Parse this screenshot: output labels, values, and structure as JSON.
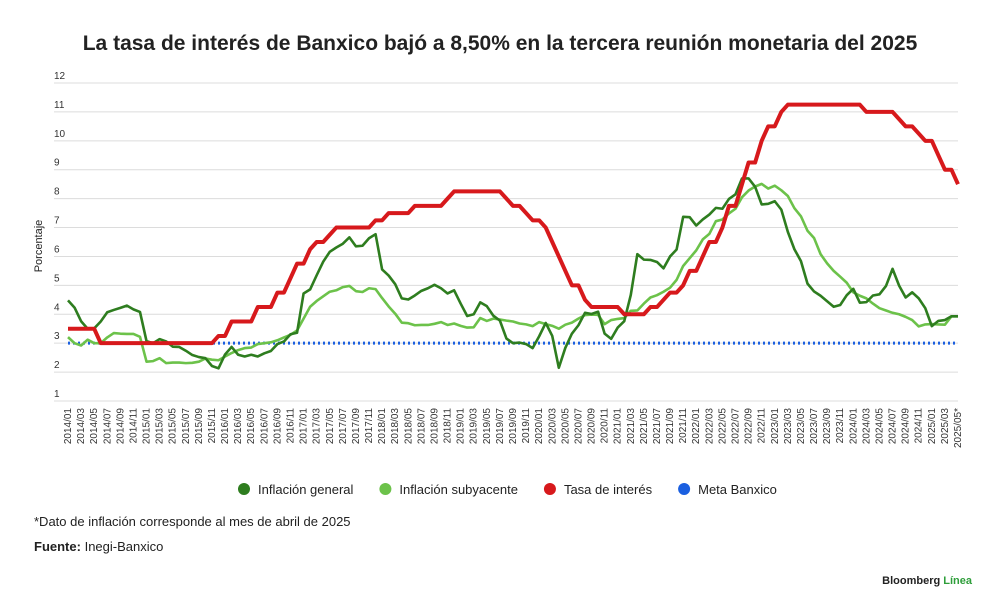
{
  "chart_data": {
    "type": "line",
    "title": "La tasa de interés de Banxico bajó a 8,50% en la tercera reunión monetaria del 2025",
    "y_label": "Porcentaje",
    "categories": [
      "2014/01",
      null,
      "2014/03",
      null,
      "2014/05",
      null,
      "2014/07",
      null,
      "2014/09",
      null,
      "2014/11",
      null,
      "2015/01",
      null,
      "2015/03",
      null,
      "2015/05",
      null,
      "2015/07",
      null,
      "2015/09",
      null,
      "2015/11",
      null,
      "2016/01",
      null,
      "2016/03",
      null,
      "2016/05",
      null,
      "2016/07",
      null,
      "2016/09",
      null,
      "2016/11",
      null,
      "2017/01",
      null,
      "2017/03",
      null,
      "2017/05",
      null,
      "2017/07",
      null,
      "2017/09",
      null,
      "2017/11",
      null,
      "2018/01",
      null,
      "2018/03",
      null,
      "2018/05",
      null,
      "2018/07",
      null,
      "2018/09",
      null,
      "2018/11",
      null,
      "2019/01",
      null,
      "2019/03",
      null,
      "2019/05",
      null,
      "2019/07",
      null,
      "2019/09",
      null,
      "2019/11",
      null,
      "2020/01",
      null,
      "2020/03",
      null,
      "2020/05",
      null,
      "2020/07",
      null,
      "2020/09",
      null,
      "2020/11",
      null,
      "2021/01",
      null,
      "2021/03",
      null,
      "2021/05",
      null,
      "2021/07",
      null,
      "2021/09",
      null,
      "2021/11",
      null,
      "2022/01",
      null,
      "2022/03",
      null,
      "2022/05",
      null,
      "2022/07",
      null,
      "2022/09",
      null,
      "2022/11",
      null,
      "2023/01",
      null,
      "2023/03",
      null,
      "2023/05",
      null,
      "2023/07",
      null,
      "2023/09",
      null,
      "2023/11",
      null,
      "2024/01",
      null,
      "2024/03",
      null,
      "2024/05",
      null,
      "2024/07",
      null,
      "2024/09",
      null,
      "2024/11",
      null,
      "2025/01",
      null,
      "2025/03",
      null,
      "2025/05*"
    ],
    "series": [
      {
        "name": "Inflación general",
        "color": "#2e7d1f",
        "line_style": "solid",
        "values": [
          4.48,
          4.23,
          3.76,
          3.5,
          3.51,
          3.75,
          4.07,
          4.15,
          4.22,
          4.3,
          4.17,
          4.08,
          3.07,
          3.0,
          3.14,
          3.06,
          2.88,
          2.87,
          2.74,
          2.59,
          2.52,
          2.48,
          2.21,
          2.13,
          2.61,
          2.87,
          2.6,
          2.54,
          2.6,
          2.54,
          2.65,
          2.73,
          2.97,
          3.06,
          3.31,
          3.36,
          4.72,
          4.86,
          5.35,
          5.82,
          6.16,
          6.31,
          6.44,
          6.66,
          6.35,
          6.37,
          6.63,
          6.77,
          5.55,
          5.34,
          5.04,
          4.55,
          4.51,
          4.65,
          4.81,
          4.9,
          5.02,
          4.9,
          4.72,
          4.83,
          4.37,
          3.94,
          4.0,
          4.41,
          4.28,
          3.95,
          3.78,
          3.16,
          3.0,
          3.02,
          2.97,
          2.83,
          3.24,
          3.7,
          3.25,
          2.15,
          2.84,
          3.33,
          3.62,
          4.05,
          4.01,
          4.09,
          3.33,
          3.15,
          3.54,
          3.76,
          4.67,
          6.08,
          5.89,
          5.88,
          5.81,
          5.59,
          6.0,
          6.24,
          7.37,
          7.36,
          7.07,
          7.28,
          7.45,
          7.68,
          7.65,
          7.99,
          8.15,
          8.7,
          8.7,
          8.41,
          7.8,
          7.82,
          7.91,
          7.62,
          6.85,
          6.25,
          5.84,
          5.06,
          4.79,
          4.64,
          4.45,
          4.26,
          4.32,
          4.66,
          4.88,
          4.4,
          4.42,
          4.65,
          4.69,
          4.98,
          5.57,
          4.99,
          4.58,
          4.76,
          4.55,
          4.21,
          3.59,
          3.77,
          3.8,
          3.93,
          3.93
        ]
      },
      {
        "name": "Inflación subyacente",
        "color": "#6cc24a",
        "line_style": "solid",
        "values": [
          3.21,
          3.0,
          2.92,
          3.12,
          3.0,
          3.0,
          3.2,
          3.35,
          3.33,
          3.32,
          3.32,
          3.22,
          2.36,
          2.38,
          2.48,
          2.31,
          2.33,
          2.33,
          2.31,
          2.32,
          2.36,
          2.47,
          2.43,
          2.41,
          2.54,
          2.66,
          2.76,
          2.83,
          2.85,
          2.97,
          3.0,
          3.03,
          3.1,
          3.2,
          3.29,
          3.44,
          3.85,
          4.26,
          4.46,
          4.62,
          4.78,
          4.83,
          4.94,
          4.98,
          4.8,
          4.77,
          4.9,
          4.87,
          4.56,
          4.27,
          4.02,
          3.71,
          3.69,
          3.62,
          3.63,
          3.63,
          3.67,
          3.73,
          3.63,
          3.68,
          3.6,
          3.54,
          3.55,
          3.87,
          3.77,
          3.85,
          3.82,
          3.78,
          3.75,
          3.68,
          3.65,
          3.59,
          3.73,
          3.66,
          3.6,
          3.5,
          3.64,
          3.71,
          3.85,
          3.97,
          3.99,
          3.98,
          3.66,
          3.8,
          3.84,
          3.87,
          4.12,
          4.13,
          4.37,
          4.58,
          4.66,
          4.78,
          4.92,
          5.19,
          5.67,
          5.94,
          6.21,
          6.59,
          6.78,
          7.22,
          7.28,
          7.49,
          7.65,
          8.05,
          8.28,
          8.42,
          8.51,
          8.35,
          8.45,
          8.29,
          8.09,
          7.67,
          7.39,
          6.89,
          6.64,
          6.08,
          5.76,
          5.5,
          5.3,
          5.09,
          4.76,
          4.64,
          4.55,
          4.37,
          4.21,
          4.13,
          4.05,
          4.0,
          3.91,
          3.8,
          3.58,
          3.65,
          3.66,
          3.65,
          3.64,
          3.93,
          3.93
        ]
      },
      {
        "name": "Tasa de interés",
        "color": "#d7191c",
        "line_style": "solid",
        "values": [
          3.5,
          3.5,
          3.5,
          3.5,
          3.5,
          3,
          3,
          3,
          3,
          3,
          3,
          3,
          3,
          3,
          3,
          3,
          3,
          3,
          3,
          3,
          3,
          3,
          3,
          3.25,
          3.25,
          3.75,
          3.75,
          3.75,
          3.75,
          4.25,
          4.25,
          4.25,
          4.75,
          4.75,
          5.25,
          5.75,
          5.75,
          6.25,
          6.5,
          6.5,
          6.75,
          7,
          7,
          7,
          7,
          7,
          7,
          7.25,
          7.25,
          7.5,
          7.5,
          7.5,
          7.5,
          7.75,
          7.75,
          7.75,
          7.75,
          7.75,
          8,
          8.25,
          8.25,
          8.25,
          8.25,
          8.25,
          8.25,
          8.25,
          8.25,
          8,
          7.75,
          7.75,
          7.5,
          7.25,
          7.25,
          7,
          6.5,
          6,
          5.5,
          5,
          5,
          4.5,
          4.25,
          4.25,
          4.25,
          4.25,
          4.25,
          4,
          4,
          4,
          4,
          4.25,
          4.25,
          4.5,
          4.75,
          4.75,
          5,
          5.5,
          5.5,
          6,
          6.5,
          6.5,
          7,
          7.75,
          7.75,
          8.5,
          9.25,
          9.25,
          10,
          10.5,
          10.5,
          11,
          11.25,
          11.25,
          11.25,
          11.25,
          11.25,
          11.25,
          11.25,
          11.25,
          11.25,
          11.25,
          11.25,
          11.25,
          11,
          11,
          11,
          11,
          11,
          10.75,
          10.5,
          10.5,
          10.25,
          10,
          10,
          9.5,
          9,
          9,
          8.5
        ]
      },
      {
        "name": "Meta Banxico",
        "color": "#1a5fe0",
        "line_style": "dotted",
        "values": [
          3,
          3,
          3,
          3,
          3,
          3,
          3,
          3,
          3,
          3,
          3,
          3,
          3,
          3,
          3,
          3,
          3,
          3,
          3,
          3,
          3,
          3,
          3,
          3,
          3,
          3,
          3,
          3,
          3,
          3,
          3,
          3,
          3,
          3,
          3,
          3,
          3,
          3,
          3,
          3,
          3,
          3,
          3,
          3,
          3,
          3,
          3,
          3,
          3,
          3,
          3,
          3,
          3,
          3,
          3,
          3,
          3,
          3,
          3,
          3,
          3,
          3,
          3,
          3,
          3,
          3,
          3,
          3,
          3,
          3,
          3,
          3,
          3,
          3,
          3,
          3,
          3,
          3,
          3,
          3,
          3,
          3,
          3,
          3,
          3,
          3,
          3,
          3,
          3,
          3,
          3,
          3,
          3,
          3,
          3,
          3,
          3,
          3,
          3,
          3,
          3,
          3,
          3,
          3,
          3,
          3,
          3,
          3,
          3,
          3,
          3,
          3,
          3,
          3,
          3,
          3,
          3,
          3,
          3,
          3,
          3,
          3,
          3,
          3,
          3,
          3,
          3,
          3,
          3,
          3,
          3,
          3,
          3,
          3,
          3,
          3,
          3
        ]
      }
    ],
    "ylim": [
      1,
      12
    ],
    "yticks": [
      1,
      2,
      3,
      4,
      5,
      6,
      7,
      8,
      9,
      10,
      11,
      12
    ],
    "grid": true,
    "footnote": "*Dato de inflación corresponde al mes de abril de 2025",
    "source_label": "Fuente:",
    "source": "Inegi-Banxico",
    "brand": "Bloomberg",
    "brand_accent": "Línea"
  }
}
